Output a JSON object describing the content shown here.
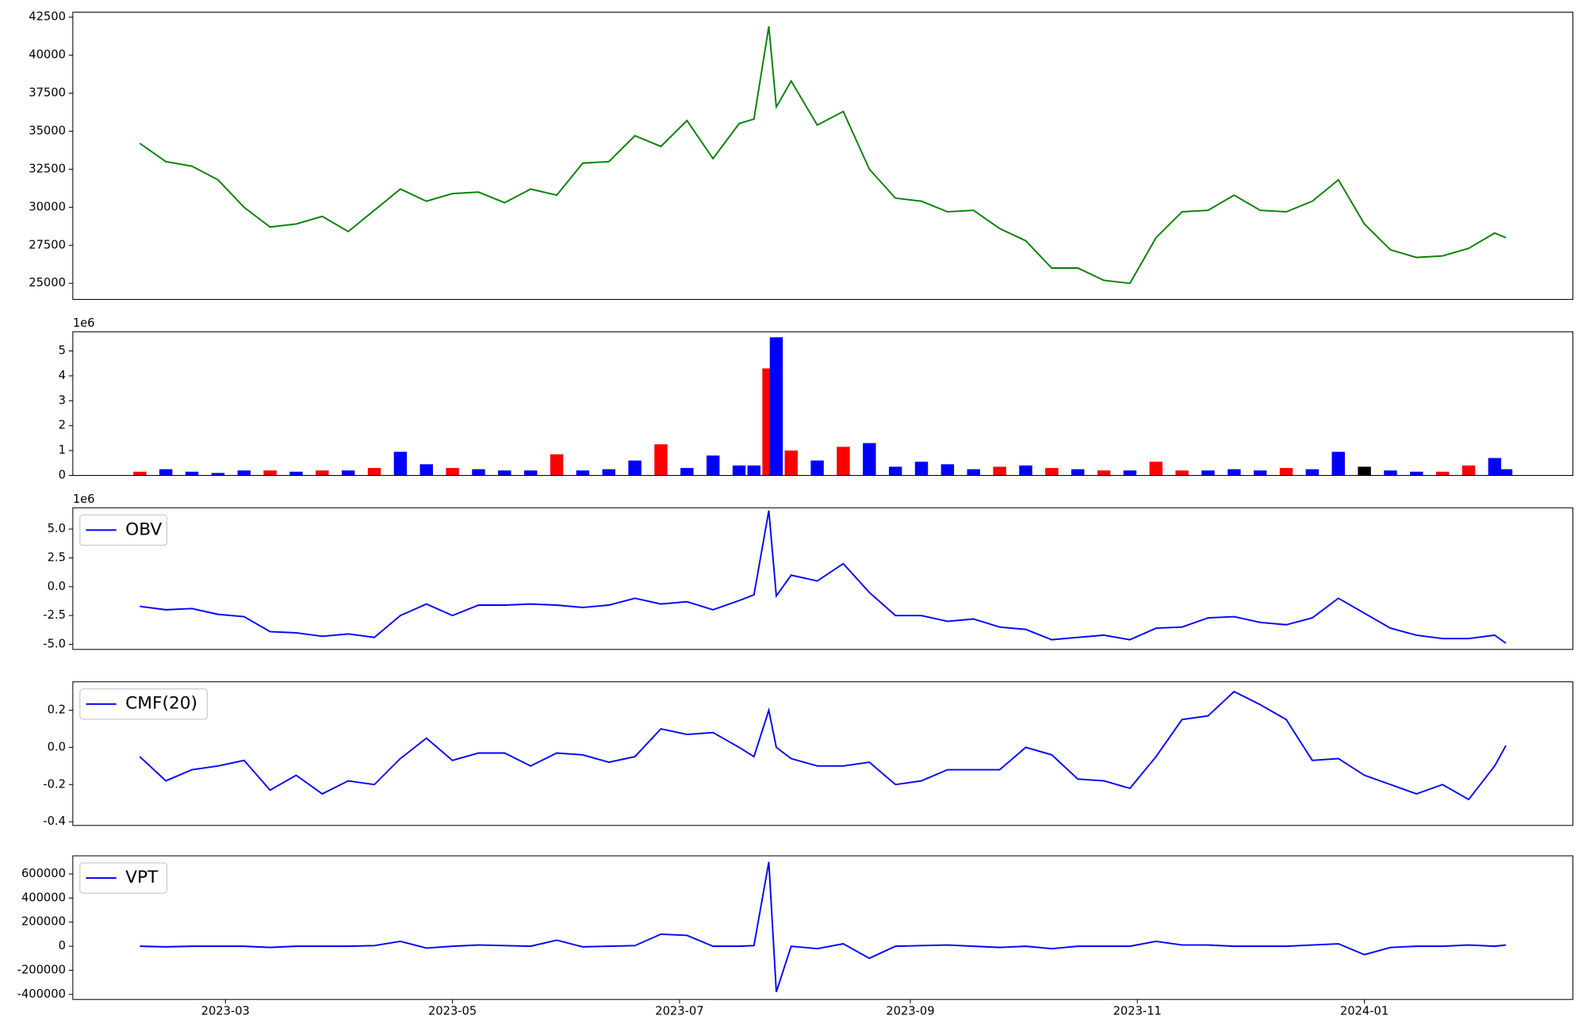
{
  "chart_data": [
    {
      "type": "line",
      "x": [
        36,
        43,
        50,
        57,
        64,
        71,
        78,
        85,
        92,
        99,
        106,
        113,
        120,
        127,
        134,
        141,
        148,
        155,
        162,
        169,
        176,
        183,
        190,
        197,
        201,
        205,
        207,
        211,
        218,
        225,
        232,
        239,
        246,
        253,
        260,
        267,
        274,
        281,
        288,
        295,
        302,
        309,
        316,
        323,
        330,
        337,
        344,
        351,
        358,
        365,
        372,
        379,
        386,
        393,
        400,
        403
      ],
      "series": [
        {
          "color": "green",
          "values": [
            34200,
            33000,
            32700,
            31800,
            30000,
            28700,
            28900,
            29400,
            28400,
            29800,
            31200,
            30400,
            30900,
            31000,
            30300,
            31200,
            30800,
            32900,
            33000,
            34700,
            34000,
            35700,
            33200,
            35500,
            35800,
            41900,
            36600,
            38300,
            35400,
            36300,
            32500,
            30600,
            30400,
            29700,
            29800,
            28600,
            27800,
            26000,
            26000,
            25200,
            25000,
            28000,
            29700,
            29800,
            30800,
            29800,
            29700,
            30400,
            31800,
            28900,
            27200,
            26700,
            26800,
            27300,
            28300,
            28000
          ]
        }
      ],
      "xlim": [
        18,
        421
      ],
      "ylim": [
        23940,
        42830
      ],
      "yticks": [
        25000,
        27500,
        30000,
        32500,
        35000,
        37500,
        40000,
        42500
      ]
    },
    {
      "type": "bar",
      "x": [
        36,
        43,
        50,
        57,
        64,
        71,
        78,
        85,
        92,
        99,
        106,
        113,
        120,
        127,
        134,
        141,
        148,
        155,
        162,
        169,
        176,
        183,
        190,
        197,
        201,
        205,
        207,
        211,
        218,
        225,
        232,
        239,
        246,
        253,
        260,
        267,
        274,
        281,
        288,
        295,
        302,
        309,
        316,
        323,
        330,
        337,
        344,
        351,
        358,
        365,
        372,
        379,
        386,
        393,
        400,
        403
      ],
      "values": [
        0.15,
        0.25,
        0.15,
        0.1,
        0.2,
        0.2,
        0.15,
        0.2,
        0.2,
        0.3,
        0.95,
        0.45,
        0.3,
        0.25,
        0.2,
        0.2,
        0.85,
        0.2,
        0.25,
        0.6,
        1.25,
        0.3,
        0.8,
        0.4,
        0.4,
        4.3,
        5.55,
        1.0,
        0.6,
        1.15,
        1.3,
        0.35,
        0.55,
        0.45,
        0.25,
        0.35,
        0.4,
        0.3,
        0.25,
        0.2,
        0.2,
        0.55,
        0.2,
        0.2,
        0.25,
        0.2,
        0.3,
        0.25,
        0.95,
        0.35,
        0.2,
        0.15,
        0.15,
        0.4,
        0.7,
        0.25
      ],
      "colors": [
        "red",
        "blue",
        "blue",
        "blue",
        "blue",
        "red",
        "blue",
        "red",
        "blue",
        "red",
        "blue",
        "blue",
        "red",
        "blue",
        "blue",
        "blue",
        "red",
        "blue",
        "blue",
        "blue",
        "red",
        "blue",
        "blue",
        "blue",
        "blue",
        "red",
        "blue",
        "red",
        "blue",
        "red",
        "blue",
        "blue",
        "blue",
        "blue",
        "blue",
        "red",
        "blue",
        "red",
        "blue",
        "red",
        "blue",
        "red",
        "red",
        "blue",
        "blue",
        "blue",
        "red",
        "blue",
        "blue",
        "black",
        "blue",
        "blue",
        "red",
        "red",
        "blue",
        "blue"
      ],
      "offset_label": "1e6",
      "xlim": [
        18,
        421
      ],
      "ylim": [
        0,
        5.77
      ],
      "yticks": [
        0,
        1,
        2,
        3,
        4,
        5
      ]
    },
    {
      "type": "line",
      "x": [
        36,
        43,
        50,
        57,
        64,
        71,
        78,
        85,
        92,
        99,
        106,
        113,
        120,
        127,
        134,
        141,
        148,
        155,
        162,
        169,
        176,
        183,
        190,
        197,
        201,
        205,
        207,
        211,
        218,
        225,
        232,
        239,
        246,
        253,
        260,
        267,
        274,
        281,
        288,
        295,
        302,
        309,
        316,
        323,
        330,
        337,
        344,
        351,
        358,
        365,
        372,
        379,
        386,
        393,
        400,
        403
      ],
      "series": [
        {
          "name": "OBV",
          "color": "blue",
          "values": [
            -1.7,
            -2.0,
            -1.9,
            -2.4,
            -2.6,
            -3.9,
            -4.0,
            -4.3,
            -4.1,
            -4.4,
            -2.5,
            -1.5,
            -2.5,
            -1.6,
            -1.6,
            -1.5,
            -1.6,
            -1.8,
            -1.6,
            -1.0,
            -1.5,
            -1.3,
            -2.0,
            -1.2,
            -0.7,
            6.6,
            -0.8,
            1.0,
            0.5,
            2.0,
            -0.5,
            -2.5,
            -2.5,
            -3.0,
            -2.8,
            -3.5,
            -3.7,
            -4.6,
            -4.4,
            -4.2,
            -4.6,
            -3.6,
            -3.5,
            -2.7,
            -2.6,
            -3.1,
            -3.3,
            -2.7,
            -1.0,
            -2.3,
            -3.6,
            -4.2,
            -4.5,
            -4.5,
            -4.2,
            -4.9
          ]
        }
      ],
      "legend": "upper left",
      "offset_label": "1e6",
      "xlim": [
        18,
        421
      ],
      "ylim": [
        -5.44,
        6.84
      ],
      "yticks": [
        {
          "value": -5,
          "label": "-5.0"
        },
        -2.5,
        {
          "value": 0,
          "label": "0.0"
        },
        2.5,
        {
          "value": 5,
          "label": "5.0"
        }
      ]
    },
    {
      "type": "line",
      "x": [
        36,
        43,
        50,
        57,
        64,
        71,
        78,
        85,
        92,
        99,
        106,
        113,
        120,
        127,
        134,
        141,
        148,
        155,
        162,
        169,
        176,
        183,
        190,
        197,
        201,
        205,
        207,
        211,
        218,
        225,
        232,
        239,
        246,
        253,
        260,
        267,
        274,
        281,
        288,
        295,
        302,
        309,
        316,
        323,
        330,
        337,
        344,
        351,
        358,
        365,
        372,
        379,
        386,
        393,
        400,
        403
      ],
      "series": [
        {
          "name": "CMF(20)",
          "color": "blue",
          "values": [
            -0.05,
            -0.18,
            -0.12,
            -0.1,
            -0.07,
            -0.23,
            -0.15,
            -0.25,
            -0.18,
            -0.2,
            -0.06,
            0.05,
            -0.07,
            -0.03,
            -0.03,
            -0.1,
            -0.03,
            -0.04,
            -0.08,
            -0.05,
            0.1,
            0.07,
            0.08,
            0.0,
            -0.05,
            0.2,
            0.0,
            -0.06,
            -0.1,
            -0.1,
            -0.08,
            -0.2,
            -0.18,
            -0.12,
            -0.12,
            -0.12,
            0.0,
            -0.04,
            -0.17,
            -0.18,
            -0.22,
            -0.05,
            0.15,
            0.17,
            0.3,
            0.23,
            0.15,
            -0.07,
            -0.06,
            -0.15,
            -0.2,
            -0.25,
            -0.2,
            -0.28,
            -0.1,
            0.01
          ]
        }
      ],
      "legend": "upper left",
      "xlim": [
        18,
        421
      ],
      "ylim": [
        -0.42,
        0.353
      ],
      "yticks": [
        -0.4,
        -0.2,
        {
          "value": 0,
          "label": "0.0"
        },
        0.2
      ]
    },
    {
      "type": "line",
      "x": [
        36,
        43,
        50,
        57,
        64,
        71,
        78,
        85,
        92,
        99,
        106,
        113,
        120,
        127,
        134,
        141,
        148,
        155,
        162,
        169,
        176,
        183,
        190,
        197,
        201,
        205,
        207,
        211,
        218,
        225,
        232,
        239,
        246,
        253,
        260,
        267,
        274,
        281,
        288,
        295,
        302,
        309,
        316,
        323,
        330,
        337,
        344,
        351,
        358,
        365,
        372,
        379,
        386,
        393,
        400,
        403
      ],
      "series": [
        {
          "name": "VPT",
          "color": "blue",
          "values": [
            0,
            -5000,
            0,
            0,
            0,
            -10000,
            0,
            0,
            0,
            5000,
            40000,
            -15000,
            0,
            10000,
            5000,
            0,
            50000,
            -5000,
            0,
            5000,
            100000,
            90000,
            0,
            0,
            5000,
            700000,
            -380000,
            0,
            -20000,
            20000,
            -100000,
            0,
            5000,
            10000,
            0,
            -10000,
            0,
            -20000,
            0,
            0,
            0,
            40000,
            10000,
            10000,
            0,
            0,
            0,
            10000,
            20000,
            -70000,
            -10000,
            0,
            0,
            10000,
            0,
            10000
          ]
        }
      ],
      "legend": "upper left",
      "xlim": [
        18,
        421
      ],
      "ylim": [
        -442000,
        751000
      ],
      "yticks": [
        -400000,
        -200000,
        0,
        200000,
        400000,
        600000
      ],
      "xticks": [
        {
          "value": 59,
          "label": "2023-03"
        },
        {
          "value": 120,
          "label": "2023-05"
        },
        {
          "value": 181,
          "label": "2023-07"
        },
        {
          "value": 243,
          "label": "2023-09"
        },
        {
          "value": 304,
          "label": "2023-11"
        },
        {
          "value": 365,
          "label": "2024-01"
        }
      ]
    }
  ]
}
